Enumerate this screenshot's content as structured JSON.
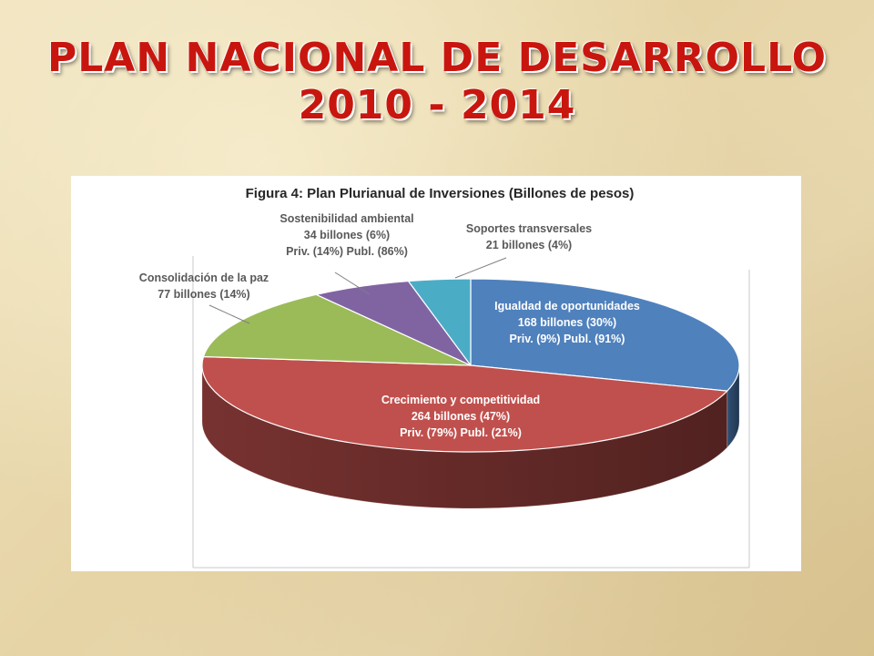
{
  "slide": {
    "title_line1": "PLAN NACIONAL DE DESARROLLO",
    "title_line2": "2010 - 2014"
  },
  "chart_data": {
    "type": "pie",
    "title": "Figura 4: Plan Plurianual de Inversiones (Billones de pesos)",
    "unit": "billones",
    "three_d": true,
    "slices": [
      {
        "name": "Igualdad de oportunidades",
        "value": 168,
        "percent": 30,
        "color": "#4f81bd",
        "lines": [
          "Igualdad de oportunidades",
          "168 billones (30%)",
          "Priv. (9%) Publ. (91%)"
        ]
      },
      {
        "name": "Crecimiento y competitividad",
        "value": 264,
        "percent": 47,
        "color": "#c0504d",
        "lines": [
          "Crecimiento y competitividad",
          "264 billones (47%)",
          "Priv. (79%) Publ. (21%)"
        ]
      },
      {
        "name": "Consolidación de la paz",
        "value": 77,
        "percent": 14,
        "color": "#9bbb59",
        "lines": [
          "Consolidación de la paz",
          "77 billones (14%)"
        ]
      },
      {
        "name": "Sostenibilidad ambiental",
        "value": 34,
        "percent": 6,
        "color": "#8064a2",
        "lines": [
          "Sostenibilidad ambiental",
          "34 billones (6%)",
          "Priv. (14%) Publ. (86%)"
        ]
      },
      {
        "name": "Soportes transversales",
        "value": 21,
        "percent": 4,
        "color": "#4bacc6",
        "lines": [
          "Soportes transversales",
          "21 billones (4%)"
        ]
      }
    ]
  }
}
